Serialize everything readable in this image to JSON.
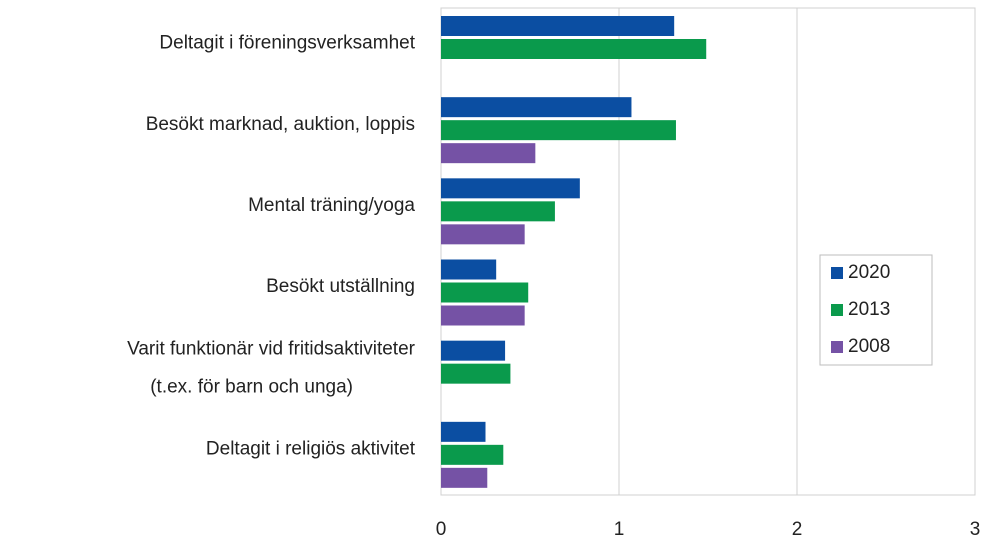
{
  "chart_data": {
    "type": "bar",
    "orientation": "horizontal",
    "categories": [
      "Deltagit i föreningsverksamhet",
      "Besökt marknad, auktion, loppis",
      "Mental träning/yoga",
      "Besökt utställning",
      "Varit funktionär vid fritidsaktiviteter\n(t.ex. för barn och unga)",
      "Deltagit i religiös aktivitet"
    ],
    "series": [
      {
        "name": "2020",
        "color": "#0b4ea2",
        "values": [
          1.31,
          1.07,
          0.78,
          0.31,
          0.36,
          0.25
        ]
      },
      {
        "name": "2013",
        "color": "#0a9a4c",
        "values": [
          1.49,
          1.32,
          0.64,
          0.49,
          0.39,
          0.35
        ]
      },
      {
        "name": "2008",
        "color": "#7552a5",
        "values": [
          null,
          0.53,
          0.47,
          0.47,
          null,
          0.26
        ]
      }
    ],
    "xlim": [
      0,
      3
    ],
    "xticks": [
      0,
      1,
      2,
      3
    ],
    "grid": true,
    "legend": "right"
  }
}
